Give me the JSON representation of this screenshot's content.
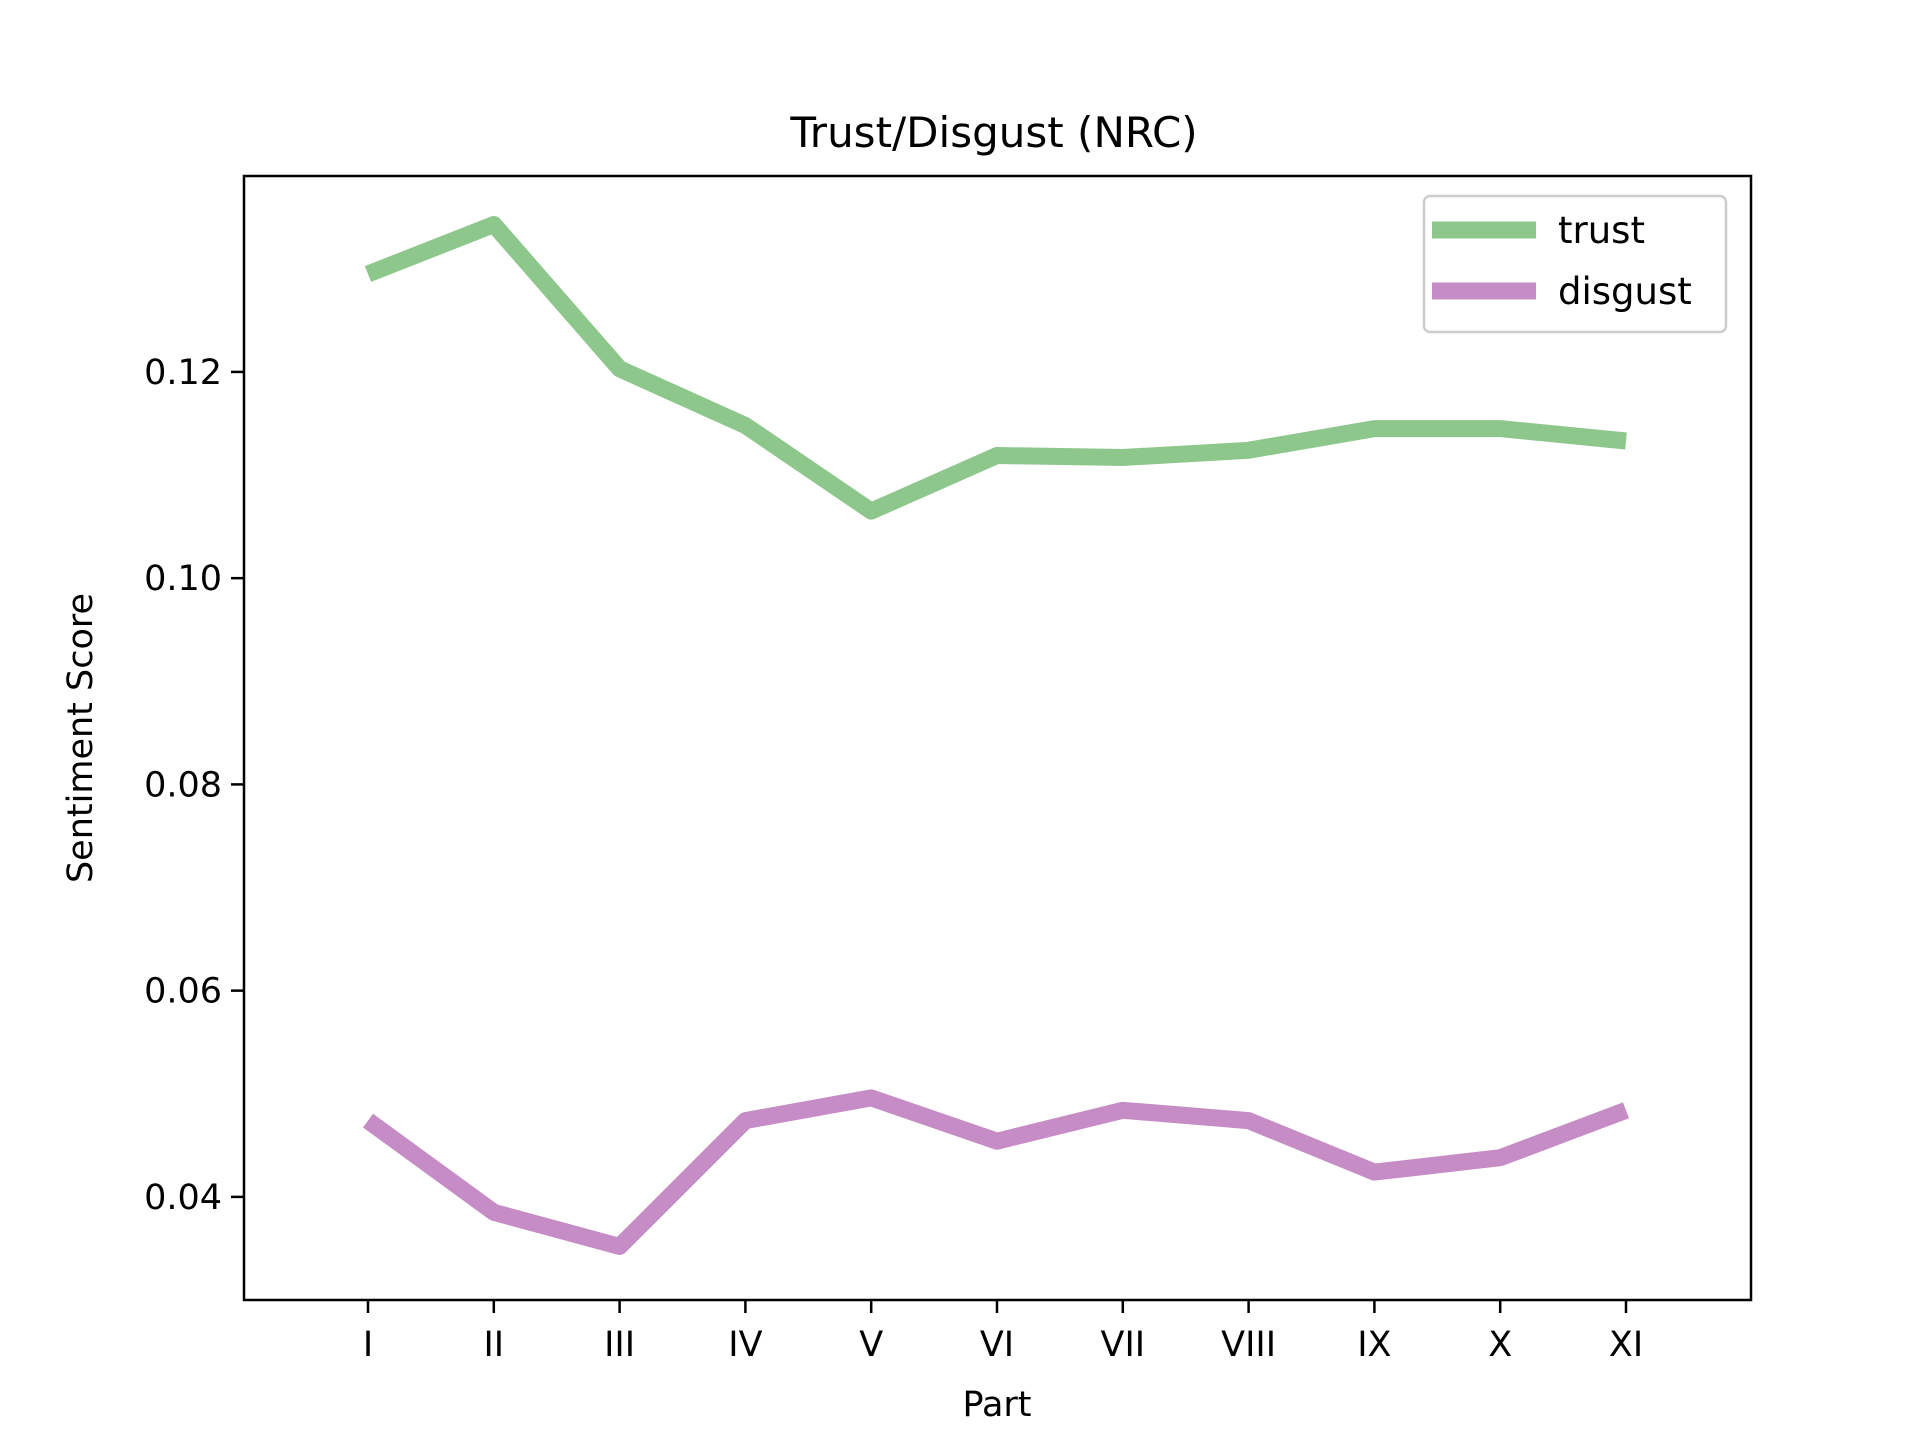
{
  "chart_data": {
    "type": "line",
    "title": "Trust/Disgust (NRC)",
    "xlabel": "Part",
    "ylabel": "Sentiment Score",
    "categories": [
      "I",
      "II",
      "III",
      "IV",
      "V",
      "VI",
      "VII",
      "VIII",
      "IX",
      "X",
      "XI"
    ],
    "ylim": [
      0.03,
      0.139
    ],
    "yticks": [
      0.04,
      0.06,
      0.08,
      0.1,
      0.12
    ],
    "ytick_labels": [
      "0.04",
      "0.06",
      "0.08",
      "0.10",
      "0.12"
    ],
    "grid": false,
    "legend_position": "top-right",
    "series": [
      {
        "name": "trust",
        "color": "#8dc78c",
        "values": [
          0.1295,
          0.1343,
          0.1203,
          0.1148,
          0.1065,
          0.1119,
          0.1117,
          0.1124,
          0.1145,
          0.1145,
          0.1133
        ]
      },
      {
        "name": "disgust",
        "color": "#c58cc6",
        "values": [
          0.0474,
          0.0385,
          0.0352,
          0.0474,
          0.0496,
          0.0454,
          0.0484,
          0.0474,
          0.0424,
          0.0438,
          0.0484
        ]
      }
    ]
  }
}
